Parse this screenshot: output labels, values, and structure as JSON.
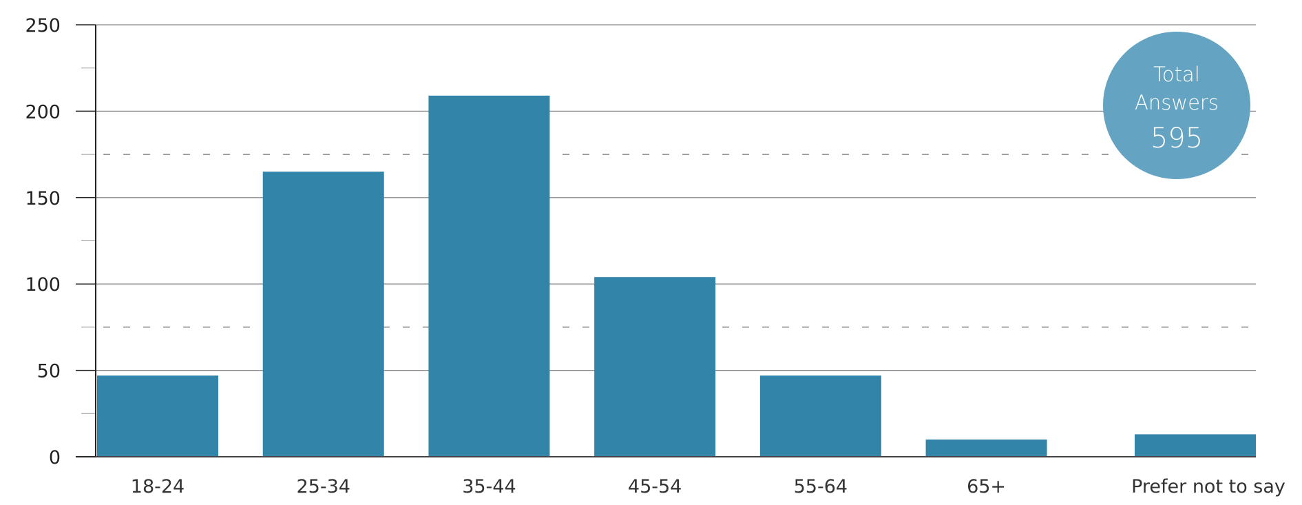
{
  "chart_data": {
    "type": "bar",
    "categories": [
      "18-24",
      "25-34",
      "35-44",
      "45-54",
      "55-64",
      "65+",
      "Prefer not to say"
    ],
    "values": [
      47,
      165,
      209,
      104,
      47,
      10,
      13
    ],
    "title": "",
    "xlabel": "",
    "ylabel": "",
    "ylim": [
      0,
      250
    ],
    "yticks": [
      0,
      50,
      100,
      150,
      200,
      250
    ],
    "dashed_reference_lines": [
      75,
      175
    ],
    "grid": true,
    "bar_color": "#3284a9"
  },
  "badge": {
    "line1": "Total",
    "line2": "Answers",
    "value": "595",
    "color": "#64a4c2"
  }
}
